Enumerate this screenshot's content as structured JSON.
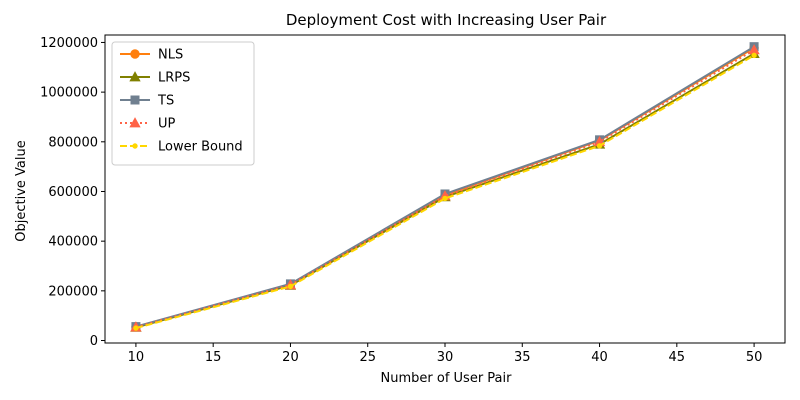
{
  "chart_data": {
    "type": "line",
    "title": "Deployment Cost with Increasing User Pair",
    "xlabel": "Number of User Pair",
    "ylabel": "Objective Value",
    "x": [
      10,
      20,
      30,
      40,
      50
    ],
    "xlim": [
      8,
      52
    ],
    "ylim": [
      -10000,
      1230000
    ],
    "xticks": [
      10,
      15,
      20,
      25,
      30,
      35,
      40,
      45,
      50
    ],
    "yticks": [
      0,
      200000,
      400000,
      600000,
      800000,
      1000000,
      1200000
    ],
    "grid": false,
    "legend_position": "top-left",
    "series": [
      {
        "name": "NLS",
        "values": [
          55000,
          226000,
          586000,
          805000,
          1178000
        ],
        "color": "#ff7f0e",
        "marker": "circle",
        "linestyle": "solid"
      },
      {
        "name": "LRPS",
        "values": [
          53000,
          222000,
          578000,
          790000,
          1155000
        ],
        "color": "#808000",
        "marker": "triangle",
        "linestyle": "solid"
      },
      {
        "name": "TS",
        "values": [
          56000,
          228000,
          590000,
          808000,
          1183000
        ],
        "color": "#708090",
        "marker": "square",
        "linestyle": "solid"
      },
      {
        "name": "UP",
        "values": [
          54000,
          224000,
          582000,
          800000,
          1170000
        ],
        "color": "#ff6347",
        "marker": "triangle",
        "linestyle": "dotted"
      },
      {
        "name": "Lower Bound",
        "values": [
          50000,
          218000,
          572000,
          784000,
          1148000
        ],
        "color": "#ffd700",
        "marker": "point",
        "linestyle": "dashed"
      }
    ]
  }
}
